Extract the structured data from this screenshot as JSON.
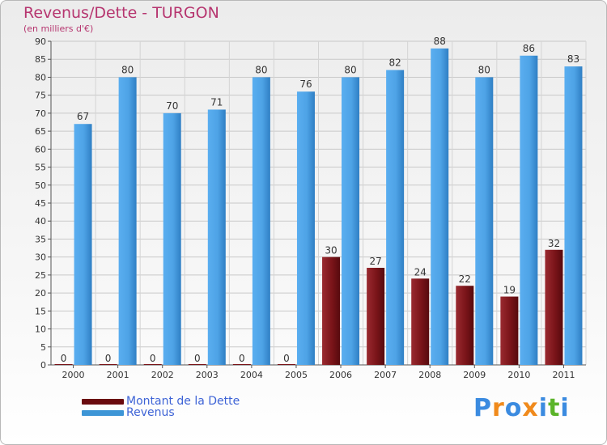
{
  "title": "Revenus/Dette - TURGON",
  "subtitle": "(en milliers d'€)",
  "colors": {
    "dette": "#7a0f14",
    "revenus": "#3d95d6",
    "title": "#b6356f",
    "legend_text": "#3d63d6",
    "logo_p": "#3b8be0",
    "logo_r": "#f08a1c",
    "logo_o": "#3b8be0",
    "logo_x": "#f08a1c",
    "logo_i": "#3b8be0",
    "logo_t": "#5bb42a",
    "logo_i2": "#3b8be0"
  },
  "legend": [
    {
      "label": "Montant de la Dette",
      "color_key": "dette"
    },
    {
      "label": "Revenus",
      "color_key": "revenus"
    }
  ],
  "logo": {
    "text": "Proxiti"
  },
  "chart_data": {
    "type": "bar",
    "title": "Revenus/Dette - TURGON",
    "ylabel": "(en milliers d'€)",
    "xlabel": "",
    "categories": [
      "2000",
      "2001",
      "2002",
      "2003",
      "2004",
      "2005",
      "2006",
      "2007",
      "2008",
      "2009",
      "2010",
      "2011"
    ],
    "series": [
      {
        "name": "Montant de la Dette",
        "values": [
          0,
          0,
          0,
          0,
          0,
          0,
          30,
          27,
          24,
          22,
          19,
          32
        ]
      },
      {
        "name": "Revenus",
        "values": [
          67,
          80,
          70,
          71,
          80,
          76,
          80,
          82,
          88,
          80,
          86,
          83
        ]
      }
    ],
    "ylim": [
      0,
      90
    ],
    "yticks": [
      0,
      5,
      10,
      15,
      20,
      25,
      30,
      35,
      40,
      45,
      50,
      55,
      60,
      65,
      70,
      75,
      80,
      85,
      90
    ],
    "grid": true,
    "legend_position": "bottom-left"
  }
}
